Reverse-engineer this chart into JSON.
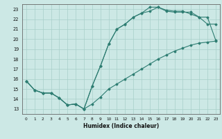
{
  "xlabel": "Humidex (Indice chaleur)",
  "xlim": [
    -0.5,
    23.5
  ],
  "ylim": [
    12.5,
    23.5
  ],
  "xticks": [
    0,
    1,
    2,
    3,
    4,
    5,
    6,
    7,
    8,
    9,
    10,
    11,
    12,
    13,
    14,
    15,
    16,
    17,
    18,
    19,
    20,
    21,
    22,
    23
  ],
  "yticks": [
    13,
    14,
    15,
    16,
    17,
    18,
    19,
    20,
    21,
    22,
    23
  ],
  "bg_color": "#cce8e5",
  "line_color": "#2e7d72",
  "grid_color": "#a8cfc9",
  "line1_x": [
    0,
    1,
    2,
    3,
    4,
    5,
    6,
    7,
    8,
    9,
    10,
    11,
    12,
    13,
    14,
    15,
    16,
    17,
    18,
    19,
    20,
    21,
    22,
    23
  ],
  "line1_y": [
    15.8,
    14.9,
    14.6,
    14.6,
    14.1,
    13.4,
    13.5,
    13.0,
    13.5,
    14.2,
    15.0,
    15.5,
    16.0,
    16.5,
    17.0,
    17.5,
    18.0,
    18.4,
    18.8,
    19.1,
    19.4,
    19.6,
    19.7,
    19.8
  ],
  "line2_x": [
    0,
    1,
    2,
    3,
    4,
    5,
    6,
    7,
    8,
    9,
    10,
    11,
    12,
    13,
    14,
    15,
    16,
    17,
    18,
    19,
    20,
    21,
    22,
    23
  ],
  "line2_y": [
    15.8,
    14.9,
    14.6,
    14.6,
    14.1,
    13.4,
    13.5,
    13.0,
    15.3,
    17.3,
    19.5,
    21.0,
    21.5,
    22.2,
    22.6,
    22.8,
    23.2,
    22.9,
    22.8,
    22.8,
    22.5,
    22.2,
    21.5,
    21.5
  ],
  "line3_x": [
    0,
    1,
    2,
    3,
    4,
    5,
    6,
    7,
    8,
    9,
    10,
    11,
    12,
    13,
    14,
    15,
    16,
    17,
    18,
    19,
    20,
    21,
    22,
    23
  ],
  "line3_y": [
    15.8,
    14.9,
    14.6,
    14.6,
    14.1,
    13.4,
    13.5,
    13.0,
    15.3,
    17.3,
    19.5,
    21.0,
    21.5,
    22.2,
    22.6,
    23.2,
    23.2,
    22.8,
    22.7,
    22.7,
    22.7,
    22.2,
    22.2,
    19.9
  ]
}
